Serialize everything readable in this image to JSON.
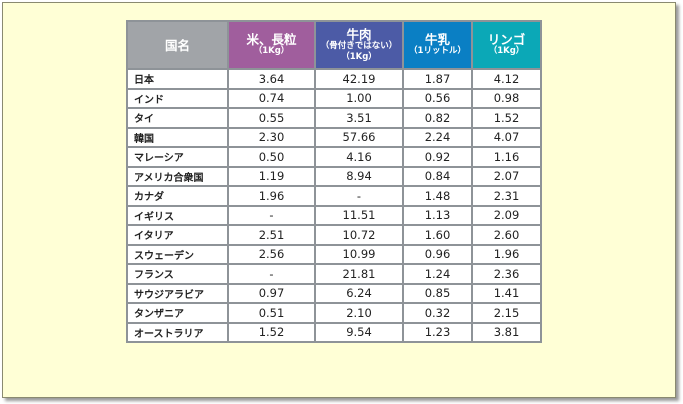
{
  "header": [
    {
      "label": "国名",
      "sub": [],
      "color": "#a1a4a8"
    },
    {
      "label": "米、長粒",
      "sub": [
        "（1Kg）"
      ],
      "color": "#a05e9d"
    },
    {
      "label": "牛肉",
      "sub": [
        "（骨付きではない）",
        "（1Kg）"
      ],
      "color": "#4c5ba6"
    },
    {
      "label": "牛乳",
      "sub": [
        "（1リットル）"
      ],
      "color": "#0a7fc4"
    },
    {
      "label": "リンゴ",
      "sub": [
        "（1Kg）"
      ],
      "color": "#0ba8b7"
    }
  ],
  "rows": [
    [
      "日本",
      "3.64",
      "42.19",
      "1.87",
      "4.12"
    ],
    [
      "インド",
      "0.74",
      "1.00",
      "0.56",
      "0.98"
    ],
    [
      "タイ",
      "0.55",
      "3.51",
      "0.82",
      "1.52"
    ],
    [
      "韓国",
      "2.30",
      "57.66",
      "2.24",
      "4.07"
    ],
    [
      "マレーシア",
      "0.50",
      "4.16",
      "0.92",
      "1.16"
    ],
    [
      "アメリカ合衆国",
      "1.19",
      "8.94",
      "0.84",
      "2.07"
    ],
    [
      "カナダ",
      "1.96",
      "-",
      "1.48",
      "2.31"
    ],
    [
      "イギリス",
      "-",
      "11.51",
      "1.13",
      "2.09"
    ],
    [
      "イタリア",
      "2.51",
      "10.72",
      "1.60",
      "2.60"
    ],
    [
      "スウェーデン",
      "2.56",
      "10.99",
      "0.96",
      "1.96"
    ],
    [
      "フランス",
      "-",
      "21.81",
      "1.24",
      "2.36"
    ],
    [
      "サウジアラビア",
      "0.97",
      "6.24",
      "0.85",
      "1.41"
    ],
    [
      "タンザニア",
      "0.51",
      "2.10",
      "0.32",
      "2.15"
    ],
    [
      "オーストラリア",
      "1.52",
      "9.54",
      "1.23",
      "3.81"
    ]
  ]
}
